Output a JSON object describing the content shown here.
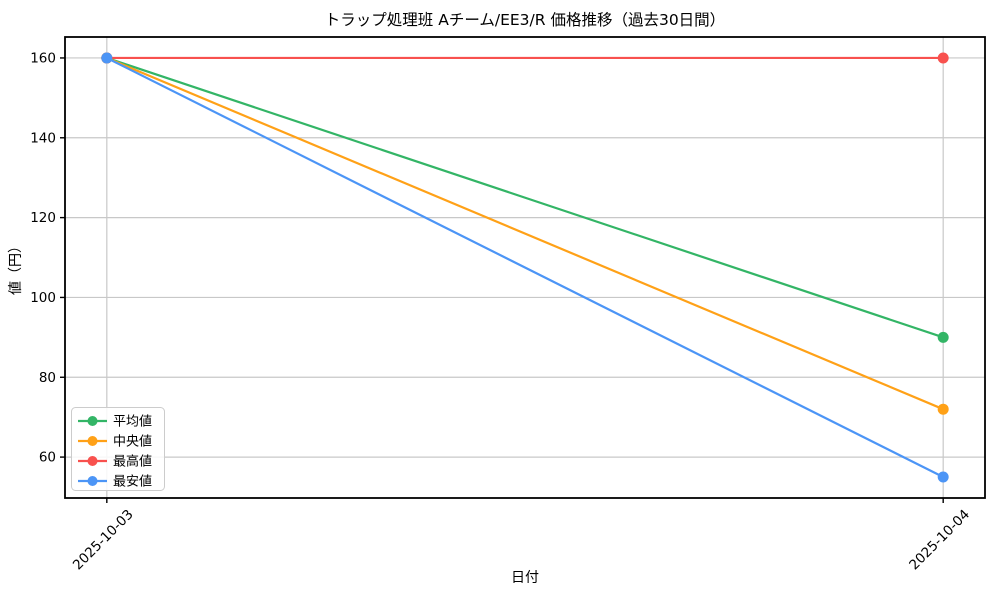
{
  "chart_data": {
    "type": "line",
    "title": "トラップ処理班 Aチーム/EE3/R 価格推移（過去30日間）",
    "xlabel": "日付",
    "ylabel": "値（円）",
    "categories": [
      "2025-10-03",
      "2025-10-04"
    ],
    "series": [
      {
        "name": "平均値",
        "values": [
          160,
          90
        ],
        "color": "#33b566"
      },
      {
        "name": "中央値",
        "values": [
          160,
          72
        ],
        "color": "#ffa117"
      },
      {
        "name": "最高値",
        "values": [
          160,
          160
        ],
        "color": "#f8514e"
      },
      {
        "name": "最安値",
        "values": [
          160,
          55
        ],
        "color": "#4c95f6"
      }
    ],
    "yticks": [
      60,
      80,
      100,
      120,
      140,
      160
    ],
    "ylim": [
      49.75,
      165.25
    ],
    "xlim": [
      -0.05,
      1.05
    ],
    "grid": true,
    "grid_color": "#c8c8c8",
    "spine_color": "#000000",
    "background_color": "#ffffff",
    "legend_position": "lower left",
    "x_tick_rotation_deg": 45,
    "marker": "circle"
  }
}
